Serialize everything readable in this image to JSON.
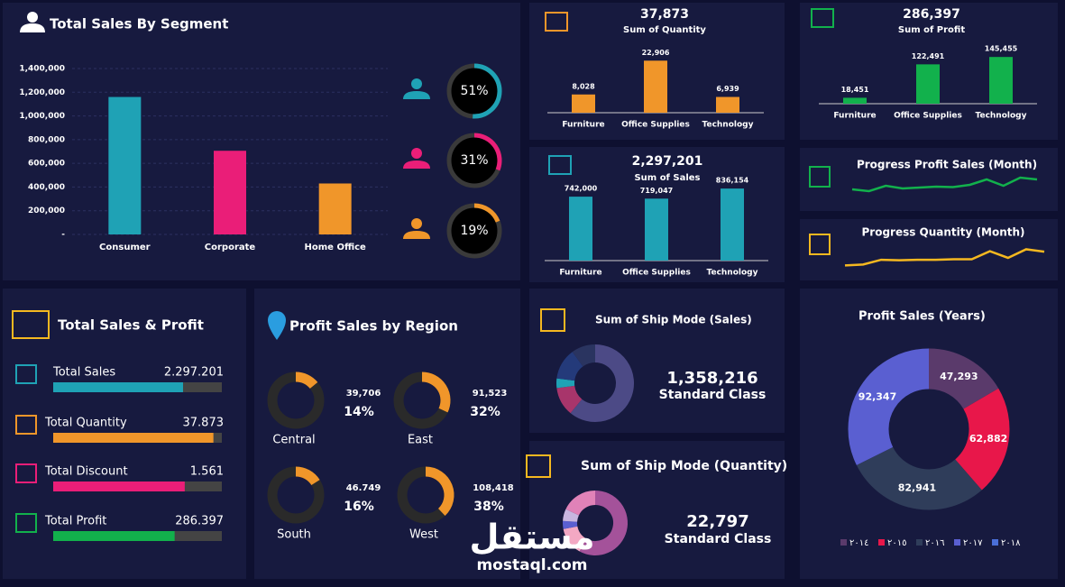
{
  "chart_data": [
    {
      "type": "bar",
      "title": "Total Sales By Segment",
      "categories": [
        "Consumer",
        "Corporate",
        "Home Office"
      ],
      "values": [
        1160000,
        706000,
        430000
      ],
      "colors": [
        "#1fa2b5",
        "#ea1e78",
        "#f0962a"
      ],
      "ylim": [
        0,
        1400000
      ],
      "yticks": [
        {
          "value": 0,
          "label": "-"
        },
        {
          "value": 200000,
          "label": "200,000"
        },
        {
          "value": 400000,
          "label": "400,000"
        },
        {
          "value": 600000,
          "label": "600,000"
        },
        {
          "value": 800000,
          "label": "800,000"
        },
        {
          "value": 1000000,
          "label": "1,000,000"
        },
        {
          "value": 1200000,
          "label": "1,200,000"
        },
        {
          "value": 1400000,
          "label": "1,400,000"
        }
      ],
      "grid": true,
      "shares": [
        51,
        31,
        19
      ],
      "share_labels": [
        "51%",
        "31%",
        "19%"
      ]
    },
    {
      "type": "bar",
      "title": "37,873",
      "subtitle": "Sum of Quantity",
      "categories": [
        "Furniture",
        "Office Supplies",
        "Technology"
      ],
      "values": [
        8028,
        22906,
        6939
      ],
      "value_labels": [
        "8,028",
        "22,906",
        "6,939"
      ],
      "color": "#f0962a",
      "ylim": [
        0,
        25000
      ]
    },
    {
      "type": "bar",
      "title": "286,397",
      "subtitle": "Sum of Profit",
      "categories": [
        "Furniture",
        "Office Supplies",
        "Technology"
      ],
      "values": [
        18451,
        122491,
        145455
      ],
      "value_labels": [
        "18,451",
        "122,491",
        "145,455"
      ],
      "color": "#12b14c",
      "ylim": [
        0,
        160000
      ]
    },
    {
      "type": "bar",
      "title": "2,297,201",
      "subtitle": "Sum of Sales",
      "categories": [
        "Furniture",
        "Office Supplies",
        "Technology"
      ],
      "values": [
        742000,
        719047,
        836154
      ],
      "value_labels": [
        "742,000",
        "719,047",
        "836,154"
      ],
      "color": "#1fa2b5",
      "ylim": [
        0,
        900000
      ]
    },
    {
      "type": "line",
      "title": "Progress Profit Sales (Month)",
      "values": [
        3,
        2.6,
        3.8,
        3.2,
        3.4,
        3.6,
        3.5,
        4,
        5.2,
        3.8,
        5.6,
        5.2
      ],
      "color": "#12b14c",
      "ylim": [
        0,
        7
      ]
    },
    {
      "type": "line",
      "title": "Progress Quantity (Month)",
      "values": [
        2,
        2.2,
        3.2,
        3.1,
        3.2,
        3.2,
        3.3,
        3.3,
        5,
        3.6,
        5.4,
        4.9
      ],
      "color": "#f5b820",
      "ylim": [
        0,
        7
      ]
    },
    {
      "type": "progress",
      "title": "Total Sales & Profit",
      "categories": [
        "Total Sales",
        "Total Quantity",
        "Total Discount",
        "Total Profit"
      ],
      "values": [
        2297201,
        37873,
        1561,
        286397
      ],
      "value_labels": [
        "2.297.201",
        "37.873",
        "1.561",
        "286.397"
      ],
      "fill": [
        77,
        95,
        78,
        72
      ],
      "xlim": [
        0,
        100
      ],
      "colors": [
        "#1fa2b5",
        "#f0962a",
        "#ea1e78",
        "#12b14c"
      ]
    },
    {
      "type": "ring",
      "title": "Profit Sales by Region",
      "categories": [
        "Central",
        "East",
        "South",
        "West"
      ],
      "values": [
        39706,
        91523,
        46749,
        108418
      ],
      "value_labels": [
        "39,706",
        "91,523",
        "46.749",
        "108,418"
      ],
      "shares": [
        14,
        32,
        16,
        38
      ],
      "share_labels": [
        "14%",
        "32%",
        "16%",
        "38%"
      ],
      "color": "#f0962a"
    },
    {
      "type": "pie",
      "title": "Sum of Ship Mode (Sales)",
      "headline": "1,358,216",
      "label": "Standard Class",
      "values": [
        61,
        12,
        4,
        13,
        10
      ],
      "colors": [
        "#4c4a86",
        "#a8356b",
        "#1fa2b5",
        "#243a7a",
        "#2a3460"
      ]
    },
    {
      "type": "pie",
      "title": "Sum of Ship Mode (Quantity)",
      "headline": "22,797",
      "label": "Standard Class",
      "values": [
        58,
        14,
        4,
        6,
        18
      ],
      "colors": [
        "#a4529a",
        "#f3a8c3",
        "#5a5fd1",
        "#c8b6e0",
        "#e082b8"
      ]
    },
    {
      "type": "pie",
      "title": "Profit Sales (Years)",
      "categories": [
        "٢٠١٤",
        "٢٠١٥",
        "٢٠١٦",
        "٢٠١٧",
        "٢٠١٨"
      ],
      "values": [
        47293,
        62882,
        82941,
        92347,
        null
      ],
      "value_labels": [
        "47,293",
        "62,882",
        "82,941",
        "92,347",
        null
      ],
      "colors": [
        "#5a3a6b",
        "#e8174a",
        "#2f3d5a",
        "#5a5fd1",
        "#4a6fd8"
      ]
    }
  ],
  "watermark": {
    "name": "مستقل",
    "url": "mostaql.com"
  }
}
